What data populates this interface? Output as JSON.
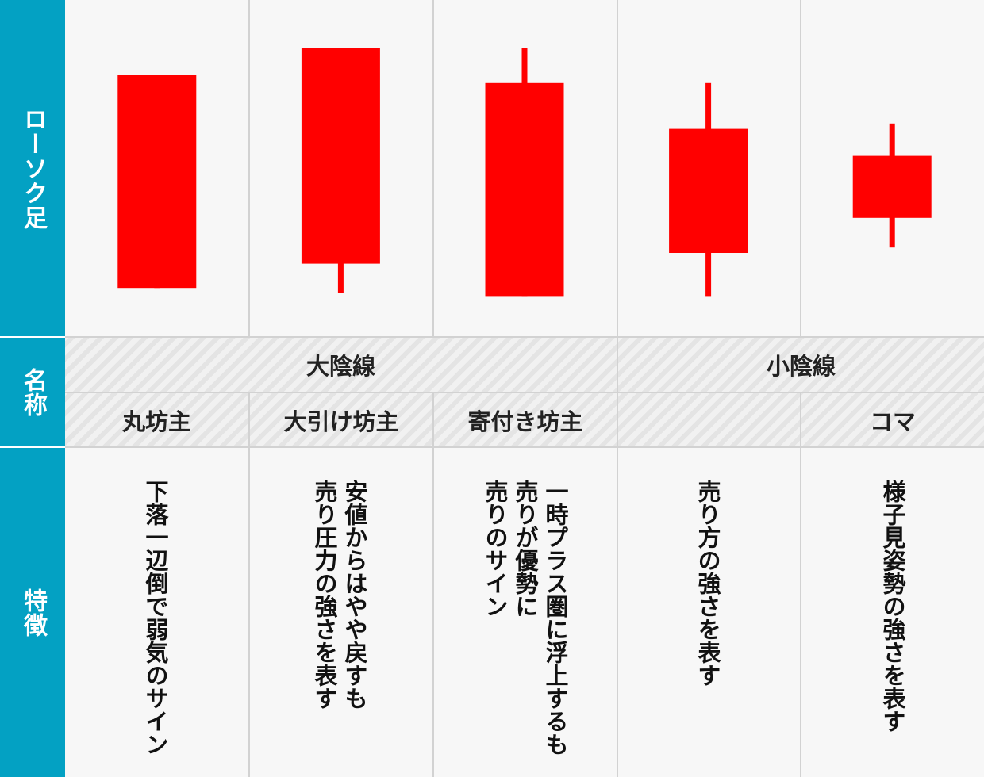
{
  "headers": {
    "candle": "ローソク足",
    "name": "名称",
    "feature": "特徴"
  },
  "groups": [
    {
      "label": "大陰線"
    },
    {
      "label": "小陰線"
    }
  ],
  "names": [
    "丸坊主",
    "大引け坊主",
    "寄付き坊主",
    "",
    "コマ"
  ],
  "features": [
    [
      "下落一辺倒で弱気のサイン"
    ],
    [
      "安値からはやや戻すも",
      "売り圧力の強さを表す"
    ],
    [
      "一時プラス圏に浮上するも",
      "売りが優勢に",
      "売りのサイン"
    ],
    [
      "売り方の強さを表す"
    ],
    [
      "様子見姿勢の強さを表す"
    ]
  ],
  "colors": {
    "candle": "#ff0000",
    "side": "#03a1c3"
  },
  "chart_data": {
    "type": "candlestick",
    "categories": [
      "丸坊主",
      "大引け坊主",
      "寄付き坊主",
      "",
      "コマ"
    ],
    "series": [
      {
        "open": 81,
        "close": 2,
        "high": 81,
        "low": 2
      },
      {
        "open": 91,
        "close": 11,
        "high": 91,
        "low": 0
      },
      {
        "open": 78,
        "close": -1,
        "high": 91,
        "low": -1
      },
      {
        "open": 61,
        "close": 15,
        "high": 78,
        "low": -1
      },
      {
        "open": 51,
        "close": 28,
        "high": 63,
        "low": 17
      }
    ],
    "ylim": [
      0,
      100
    ]
  }
}
